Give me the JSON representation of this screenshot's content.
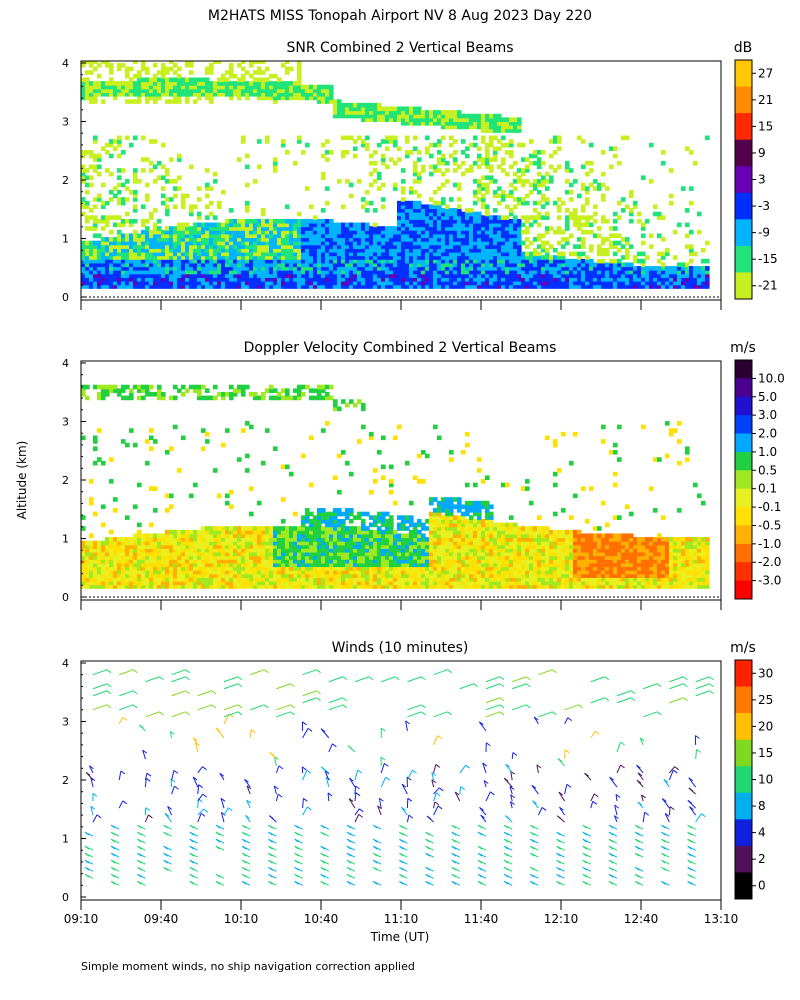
{
  "figure_title": "M2HATS MISS Tonopah Airport NV   8 Aug 2023 Day 220",
  "shared_ylabel": "Altitude (km)",
  "shared_xlabel": "Time (UT)",
  "footnote": "Simple moment winds, no ship navigation correction applied",
  "x_ticks": [
    "09:10",
    "09:40",
    "10:10",
    "10:40",
    "11:10",
    "11:40",
    "12:10",
    "12:40",
    "13:10"
  ],
  "chart_data": [
    {
      "type": "heatmap",
      "title": "SNR Combined 2 Vertical Beams",
      "xlabel": "Time (UT)",
      "ylabel": "Altitude (km)",
      "xlim": [
        "09:10",
        "13:10"
      ],
      "ylim": [
        0,
        4
      ],
      "y_ticks": [
        "0",
        "1",
        "2",
        "3",
        "4"
      ],
      "colorbar": {
        "unit": "dB",
        "labels": [
          "27",
          "21",
          "15",
          "9",
          "3",
          "-3",
          "-9",
          "-15",
          "-21"
        ],
        "colors": [
          "#ffc800",
          "#ff8c00",
          "#ff2a00",
          "#55004a",
          "#6a00b4",
          "#0030ff",
          "#00b4ff",
          "#20e37a",
          "#c8f020"
        ]
      }
    },
    {
      "type": "heatmap",
      "title": "Doppler Velocity Combined 2 Vertical Beams",
      "xlabel": "Time (UT)",
      "ylabel": "Altitude (km)",
      "xlim": [
        "09:10",
        "13:10"
      ],
      "ylim": [
        0,
        4
      ],
      "y_ticks": [
        "0",
        "1",
        "2",
        "3",
        "4"
      ],
      "colorbar": {
        "unit": "m/s",
        "labels": [
          "10.0",
          "5.0",
          "3.0",
          "2.0",
          "1.0",
          "0.5",
          "0.1",
          "-0.1",
          "-0.5",
          "-1.0",
          "-2.0",
          "-3.0"
        ],
        "colors": [
          "#2a0030",
          "#4a0090",
          "#2010d0",
          "#0040ff",
          "#00a8ff",
          "#20d040",
          "#a0e820",
          "#e8f020",
          "#ffe000",
          "#ffb000",
          "#ff7000",
          "#ff3000",
          "#ff0000"
        ]
      }
    },
    {
      "type": "wind_barbs",
      "title": "Winds (10 minutes)",
      "xlabel": "Time (UT)",
      "ylabel": "Altitude (km)",
      "xlim": [
        "09:10",
        "13:10"
      ],
      "ylim": [
        0,
        4
      ],
      "y_ticks": [
        "0",
        "1",
        "2",
        "3",
        "4"
      ],
      "colorbar": {
        "unit": "m/s",
        "labels": [
          "30",
          "25",
          "20",
          "15",
          "10",
          "8",
          "4",
          "2",
          "0"
        ],
        "colors": [
          "#ff2200",
          "#ff7a00",
          "#ffc000",
          "#80d820",
          "#20d870",
          "#00b0f0",
          "#1020e0",
          "#50105a",
          "#000000"
        ]
      }
    }
  ]
}
